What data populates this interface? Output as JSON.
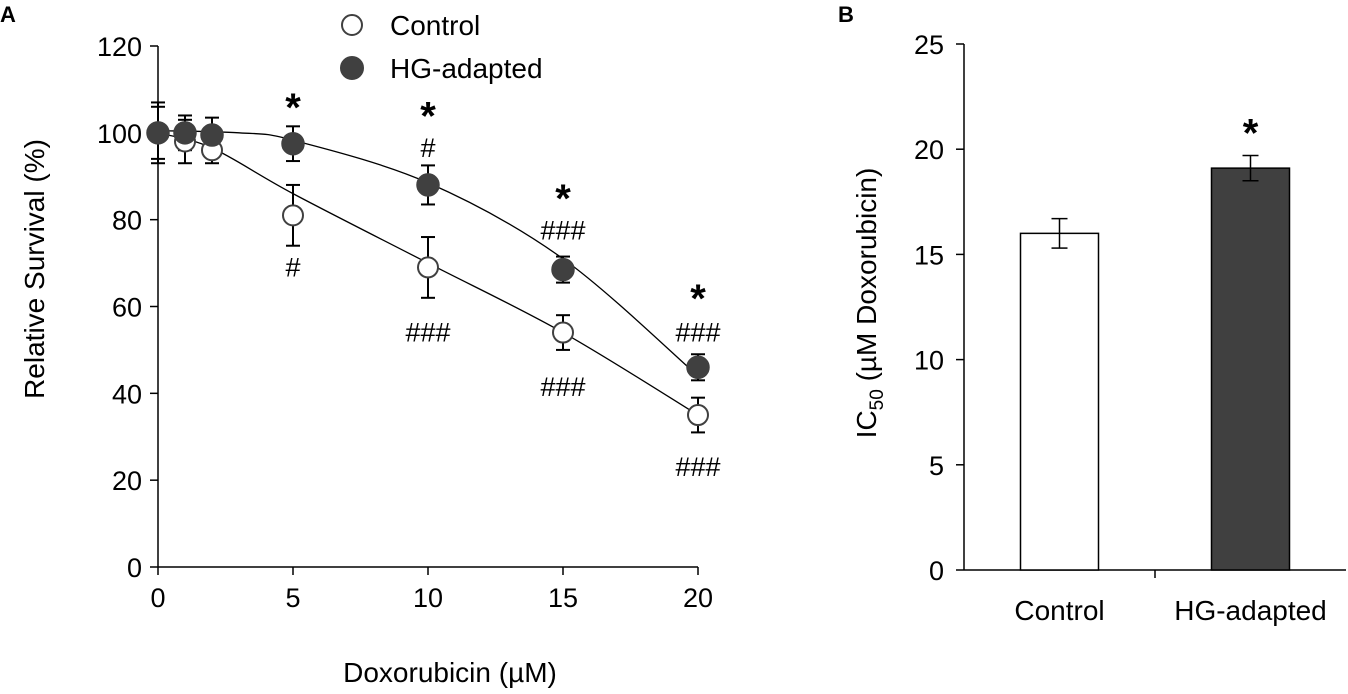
{
  "chart_data": [
    {
      "panel": "A",
      "type": "scatter",
      "xlabel": "Doxorubicin (µM)",
      "ylabel": "Relative Survival (%)",
      "xlim": [
        0,
        20
      ],
      "ylim": [
        0,
        120
      ],
      "xticks": [
        "0",
        "5",
        "10",
        "15",
        "20"
      ],
      "yticks": [
        "0",
        "20",
        "40",
        "60",
        "80",
        "100",
        "120"
      ],
      "legend": [
        "Control",
        "HG-adapted"
      ],
      "legend_position": "top-center",
      "series": [
        {
          "name": "Control",
          "marker": "open-circle",
          "x": [
            0,
            1,
            2,
            5,
            10,
            15,
            20
          ],
          "y": [
            100,
            98,
            96,
            81,
            69,
            54,
            35
          ],
          "error": [
            7,
            5,
            3,
            7,
            7,
            4,
            4
          ],
          "fit_curve": [
            [
              0,
              100
            ],
            [
              2,
              96.5
            ],
            [
              5,
              86
            ],
            [
              10,
              70
            ],
            [
              15,
              54
            ],
            [
              20,
              35
            ]
          ]
        },
        {
          "name": "HG-adapted",
          "marker": "filled-circle",
          "x": [
            0,
            1,
            2,
            5,
            10,
            15,
            20
          ],
          "y": [
            100,
            100,
            99.5,
            97.5,
            88,
            68.5,
            46
          ],
          "error": [
            6,
            4,
            4,
            4,
            4.5,
            3,
            3
          ],
          "fit_curve": [
            [
              0,
              100.5
            ],
            [
              3,
              100
            ],
            [
              5,
              98.3
            ],
            [
              10,
              88.5
            ],
            [
              15,
              71
            ],
            [
              20,
              44
            ]
          ]
        }
      ],
      "annotations": [
        {
          "x": 5,
          "y": 106,
          "text": "*",
          "kind": "star"
        },
        {
          "x": 10,
          "y": 104,
          "text": "*",
          "kind": "star"
        },
        {
          "x": 10,
          "y": 96.5,
          "text": "#",
          "kind": "hash"
        },
        {
          "x": 15,
          "y": 85,
          "text": "*",
          "kind": "star"
        },
        {
          "x": 15,
          "y": 77.5,
          "text": "###",
          "kind": "hash"
        },
        {
          "x": 20,
          "y": 62,
          "text": "*",
          "kind": "star"
        },
        {
          "x": 20,
          "y": 54,
          "text": "###",
          "kind": "hash"
        },
        {
          "x": 5,
          "y": 69,
          "text": "#",
          "kind": "hash"
        },
        {
          "x": 10,
          "y": 54,
          "text": "###",
          "kind": "hash"
        },
        {
          "x": 15,
          "y": 41.5,
          "text": "###",
          "kind": "hash"
        },
        {
          "x": 20,
          "y": 23,
          "text": "###",
          "kind": "hash"
        }
      ]
    },
    {
      "panel": "B",
      "type": "bar",
      "ylabel_main": "IC",
      "ylabel_sub": "50",
      "ylabel_rest": " (µM Doxorubicin)",
      "ylim": [
        0,
        25
      ],
      "yticks": [
        "0",
        "5",
        "10",
        "15",
        "20",
        "25"
      ],
      "categories": [
        "Control",
        "HG-adapted"
      ],
      "values": [
        16,
        19.1
      ],
      "errors": [
        0.7,
        0.6
      ],
      "colors": [
        "#ffffff",
        "#404040"
      ],
      "annotations": [
        {
          "category": "HG-adapted",
          "y": 20.8,
          "text": "*"
        }
      ]
    }
  ],
  "colors": {
    "filled_marker": "#404040",
    "open_marker_fill": "#ffffff",
    "axis": "#000000",
    "curve": "#000000"
  }
}
